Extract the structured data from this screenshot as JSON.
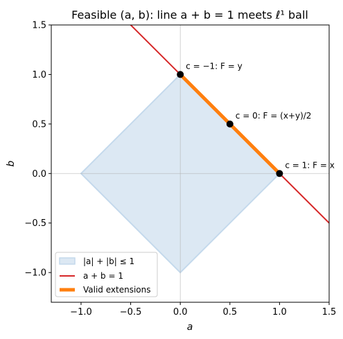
{
  "chart_data": {
    "type": "line",
    "title": "Feasible (a, b): line a + b = 1 meets ℓ¹ ball",
    "xlabel": "a",
    "ylabel": "b",
    "xlim": [
      -1.3,
      1.5
    ],
    "ylim": [
      -1.3,
      1.5
    ],
    "xticks": [
      -1.0,
      -0.5,
      0.0,
      0.5,
      1.0,
      1.5
    ],
    "yticks": [
      -1.0,
      -0.5,
      0.0,
      0.5,
      1.0,
      1.5
    ],
    "xtick_labels": [
      "−1.0",
      "−0.5",
      "0.0",
      "0.5",
      "1.0",
      "1.5"
    ],
    "ytick_labels": [
      "−1.0",
      "−0.5",
      "0.0",
      "0.5",
      "1.0",
      "1.5"
    ],
    "reference_lines": {
      "x": 0,
      "y": 0
    },
    "region": {
      "name": "|a| + |b| ≤ 1",
      "vertices": [
        [
          1,
          0
        ],
        [
          0,
          1
        ],
        [
          -1,
          0
        ],
        [
          0,
          -1
        ]
      ],
      "fill_color": "#dce8f3",
      "edge_color": "#c4d9ec"
    },
    "series": [
      {
        "name": "a + b = 1",
        "x": [
          -1.3,
          1.5
        ],
        "y": [
          2.3,
          -0.5
        ],
        "color": "#d62728"
      },
      {
        "name": "Valid extensions",
        "x": [
          0,
          1
        ],
        "y": [
          1,
          0
        ],
        "color": "#ff7f0e"
      }
    ],
    "points": [
      {
        "x": 0,
        "y": 1,
        "label": "c = −1: F = y"
      },
      {
        "x": 0.5,
        "y": 0.5,
        "label": "c = 0: F = (x+y)/2"
      },
      {
        "x": 1,
        "y": 0,
        "label": "c = 1: F = x"
      }
    ],
    "legend": {
      "position": "lower-left",
      "entries": [
        "|a| + |b| ≤ 1",
        "a + b = 1",
        "Valid extensions"
      ]
    }
  }
}
